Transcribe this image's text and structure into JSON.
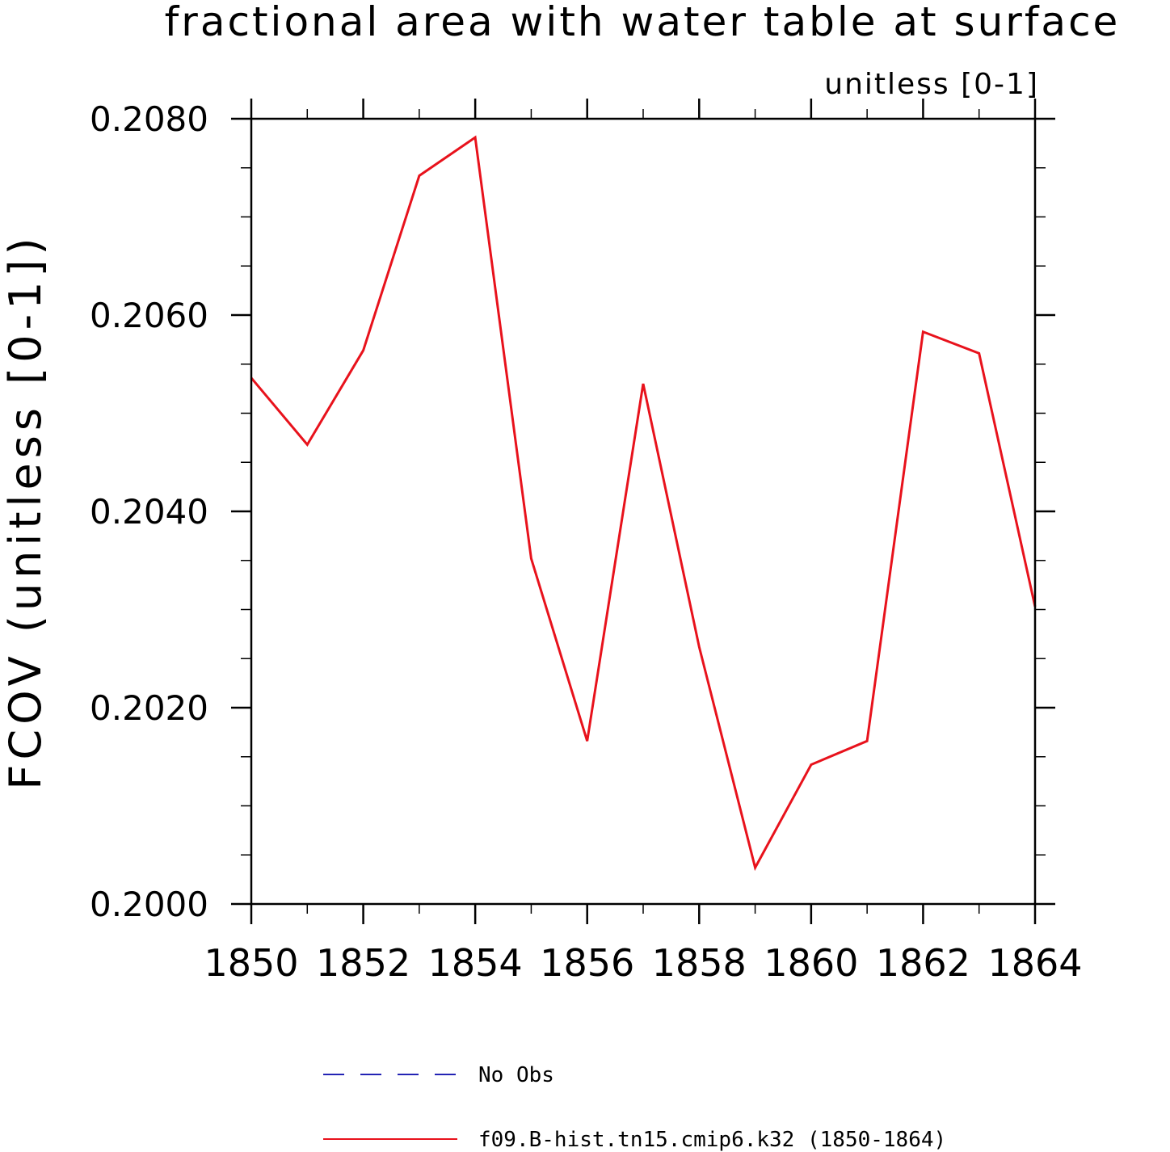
{
  "chart_data": {
    "type": "line",
    "title": "fractional area with water table at surface",
    "units_label": "unitless [0-1]",
    "ylabel": "FCOV  (unitless [0-1])",
    "xlabel": "",
    "xlim": [
      1850,
      1864
    ],
    "ylim": [
      0.2,
      0.208
    ],
    "x_ticks": [
      1850,
      1852,
      1854,
      1856,
      1858,
      1860,
      1862,
      1864
    ],
    "x_minor_ticks": [
      1851,
      1853,
      1855,
      1857,
      1859,
      1861,
      1863
    ],
    "y_ticks": [
      "0.2000",
      "0.2020",
      "0.2040",
      "0.2060",
      "0.2080"
    ],
    "y_tick_values": [
      0.2,
      0.202,
      0.204,
      0.206,
      0.208
    ],
    "y_minor_step": 0.0005,
    "grid": false,
    "legend_position": "bottom",
    "series": [
      {
        "name": "f09.B-hist.tn15.cmip6.k32 (1850-1864)",
        "color": "#e8121c",
        "style": "solid",
        "x": [
          1850,
          1851,
          1852,
          1853,
          1854,
          1855,
          1856,
          1857,
          1858,
          1859,
          1860,
          1861,
          1862,
          1863,
          1864
        ],
        "values": [
          0.20536,
          0.20468,
          0.20564,
          0.20742,
          0.20781,
          0.20352,
          0.20166,
          0.2053,
          0.20262,
          0.20037,
          0.20142,
          0.20166,
          0.20583,
          0.20561,
          0.20303
        ]
      }
    ],
    "legend": [
      {
        "label": "No Obs",
        "color": "#2323b4",
        "style": "dashed"
      },
      {
        "label": "f09.B-hist.tn15.cmip6.k32 (1850-1864)",
        "color": "#e8121c",
        "style": "solid"
      }
    ]
  }
}
